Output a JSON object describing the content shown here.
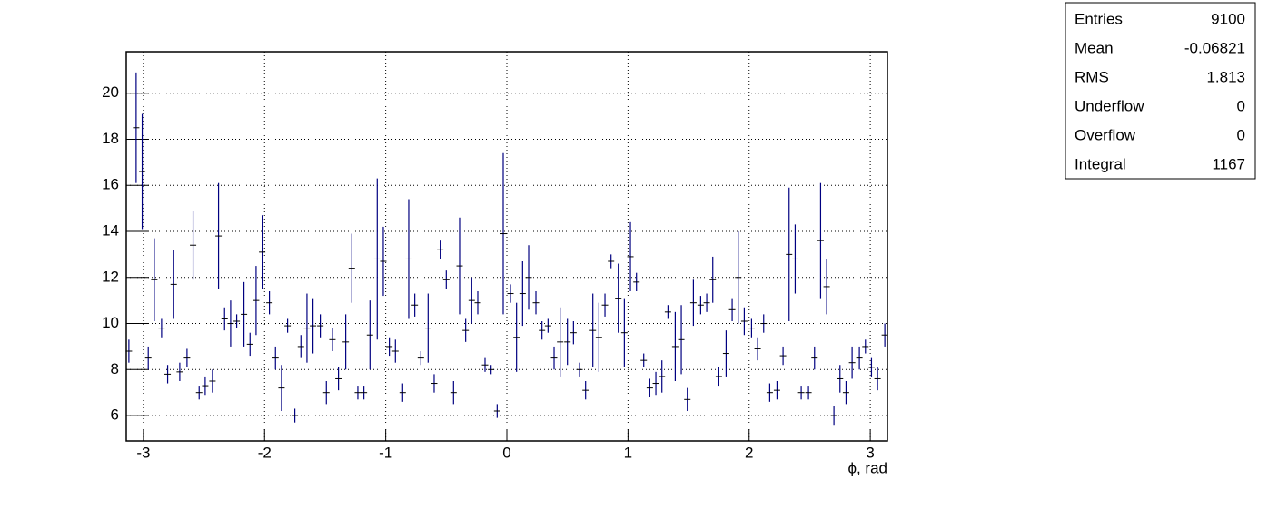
{
  "chart_data": {
    "type": "errorbar",
    "x_label": "ϕ, rad",
    "color": "#000080",
    "grid": true,
    "xlim": [
      -3.1416,
      3.1416
    ],
    "ylim": [
      4.9,
      21.8
    ],
    "xticks": [
      -3,
      -2,
      -1,
      0,
      1,
      2,
      3
    ],
    "yticks": [
      6,
      8,
      10,
      12,
      14,
      16,
      18,
      20
    ],
    "x": [
      -3.12,
      -3.06,
      -3.01,
      -2.96,
      -2.91,
      -2.85,
      -2.8,
      -2.75,
      -2.7,
      -2.64,
      -2.59,
      -2.54,
      -2.49,
      -2.43,
      -2.38,
      -2.33,
      -2.28,
      -2.23,
      -2.17,
      -2.12,
      -2.07,
      -2.02,
      -1.96,
      -1.91,
      -1.86,
      -1.81,
      -1.75,
      -1.7,
      -1.65,
      -1.6,
      -1.54,
      -1.49,
      -1.44,
      -1.39,
      -1.33,
      -1.28,
      -1.23,
      -1.18,
      -1.13,
      -1.07,
      -1.02,
      -0.97,
      -0.92,
      -0.86,
      -0.81,
      -0.76,
      -0.71,
      -0.65,
      -0.6,
      -0.55,
      -0.5,
      -0.44,
      -0.39,
      -0.34,
      -0.29,
      -0.24,
      -0.18,
      -0.13,
      -0.08,
      -0.03,
      0.03,
      0.08,
      0.13,
      0.18,
      0.24,
      0.29,
      0.34,
      0.39,
      0.44,
      0.5,
      0.55,
      0.6,
      0.65,
      0.71,
      0.76,
      0.81,
      0.86,
      0.92,
      0.97,
      1.02,
      1.07,
      1.13,
      1.18,
      1.23,
      1.28,
      1.33,
      1.39,
      1.44,
      1.49,
      1.54,
      1.6,
      1.65,
      1.7,
      1.75,
      1.81,
      1.86,
      1.91,
      1.96,
      2.02,
      2.07,
      2.12,
      2.17,
      2.23,
      2.28,
      2.33,
      2.38,
      2.43,
      2.49,
      2.54,
      2.59,
      2.64,
      2.7,
      2.75,
      2.8,
      2.85,
      2.91,
      2.96,
      3.01,
      3.06,
      3.12
    ],
    "values": [
      8.8,
      18.5,
      16.6,
      8.5,
      11.9,
      9.8,
      7.8,
      11.7,
      7.9,
      8.5,
      13.4,
      7.0,
      7.3,
      7.5,
      13.8,
      10.2,
      10.0,
      10.1,
      10.4,
      9.1,
      11.0,
      13.1,
      10.9,
      8.5,
      7.2,
      9.9,
      6.0,
      9.0,
      9.8,
      9.9,
      9.9,
      7.0,
      9.3,
      7.6,
      9.2,
      12.4,
      7.0,
      7.0,
      9.5,
      12.8,
      12.7,
      9.0,
      8.8,
      7.0,
      12.8,
      10.8,
      8.5,
      9.8,
      7.4,
      13.2,
      11.9,
      7.0,
      12.5,
      9.7,
      11.0,
      10.9,
      8.2,
      8.0,
      6.2,
      13.9,
      11.3,
      9.4,
      11.3,
      12.0,
      10.9,
      9.7,
      9.9,
      8.5,
      9.2,
      9.2,
      9.6,
      8.0,
      7.1,
      9.7,
      9.4,
      10.8,
      12.7,
      11.1,
      9.6,
      12.9,
      11.8,
      8.4,
      7.2,
      7.4,
      7.7,
      10.5,
      9.0,
      9.3,
      6.7,
      10.9,
      10.8,
      10.9,
      11.9,
      7.7,
      8.7,
      10.6,
      12.0,
      10.1,
      9.8,
      8.9,
      10.0,
      7.0,
      7.1,
      8.6,
      13.0,
      12.8,
      7.0,
      7.0,
      8.5,
      13.6,
      11.6,
      6.0,
      7.6,
      7.0,
      8.3,
      8.5,
      9.0,
      8.1,
      7.6,
      9.5
    ],
    "errors": [
      0.5,
      2.4,
      2.5,
      0.5,
      1.8,
      0.4,
      0.4,
      1.5,
      0.4,
      0.4,
      1.5,
      0.3,
      0.4,
      0.5,
      2.3,
      0.5,
      1.0,
      0.3,
      1.4,
      0.5,
      1.5,
      1.6,
      0.5,
      0.5,
      1.0,
      0.3,
      0.3,
      0.5,
      1.5,
      1.2,
      0.5,
      0.5,
      0.5,
      0.5,
      1.2,
      1.5,
      0.3,
      0.3,
      1.5,
      3.5,
      1.5,
      0.4,
      0.5,
      0.4,
      2.6,
      0.5,
      0.3,
      1.5,
      0.4,
      0.4,
      0.4,
      0.5,
      2.1,
      0.5,
      1.0,
      0.5,
      0.3,
      0.2,
      0.3,
      3.5,
      0.4,
      1.5,
      1.4,
      1.4,
      0.5,
      0.4,
      0.3,
      0.5,
      1.5,
      1.0,
      0.5,
      0.3,
      0.4,
      1.6,
      1.5,
      0.5,
      0.3,
      1.5,
      1.5,
      1.5,
      0.4,
      0.3,
      0.4,
      0.5,
      0.7,
      0.3,
      1.5,
      1.5,
      0.5,
      1.0,
      0.4,
      0.4,
      1.0,
      0.4,
      1.0,
      0.5,
      2.0,
      0.6,
      0.4,
      0.5,
      0.4,
      0.4,
      0.4,
      0.4,
      2.9,
      1.5,
      0.3,
      0.3,
      0.5,
      2.5,
      1.2,
      0.4,
      0.6,
      0.5,
      0.7,
      0.5,
      0.3,
      0.4,
      0.5,
      0.5
    ]
  },
  "stats": {
    "rows": [
      [
        "Entries",
        "9100"
      ],
      [
        "Mean",
        "-0.06821"
      ],
      [
        "RMS",
        "1.813"
      ],
      [
        "Underflow",
        "0"
      ],
      [
        "Overflow",
        "0"
      ],
      [
        "Integral",
        "1167"
      ]
    ]
  }
}
